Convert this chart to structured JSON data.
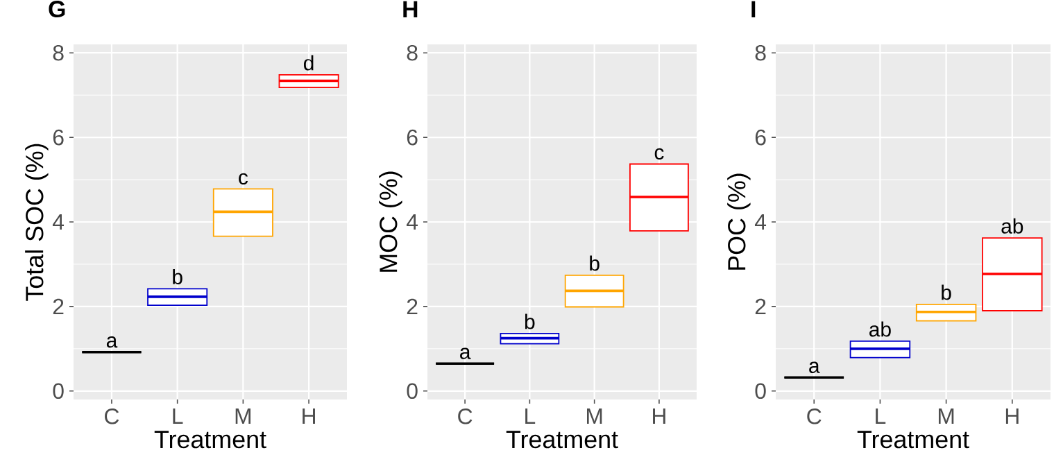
{
  "chart_data": [
    {
      "type": "box",
      "title": "G",
      "xlabel": "Treatment",
      "ylabel": "Total SOC (%)",
      "categories": [
        "C",
        "L",
        "M",
        "H"
      ],
      "boxes": [
        {
          "low": 0.92,
          "q1": 0.92,
          "median": 0.92,
          "q3": 0.92,
          "high": 0.92
        },
        {
          "low": 2.03,
          "q1": 2.03,
          "median": 2.23,
          "q3": 2.42,
          "high": 2.42
        },
        {
          "low": 3.66,
          "q1": 3.66,
          "median": 4.24,
          "q3": 4.78,
          "high": 4.78
        },
        {
          "low": 7.18,
          "q1": 7.18,
          "median": 7.34,
          "q3": 7.48,
          "high": 7.48
        }
      ],
      "colors": [
        "#000000",
        "#0000cc",
        "#ffa500",
        "#ff0000"
      ],
      "ylim": [
        -0.2,
        8.2
      ],
      "yticks": [
        0,
        2,
        4,
        6,
        8
      ],
      "grid": true,
      "annotations": [
        "a",
        "b",
        "c",
        "d"
      ]
    },
    {
      "type": "box",
      "title": "H",
      "xlabel": "Treatment",
      "ylabel": "MOC (%)",
      "categories": [
        "C",
        "L",
        "M",
        "H"
      ],
      "boxes": [
        {
          "low": 0.65,
          "q1": 0.65,
          "median": 0.65,
          "q3": 0.65,
          "high": 0.65
        },
        {
          "low": 1.12,
          "q1": 1.12,
          "median": 1.25,
          "q3": 1.36,
          "high": 1.36
        },
        {
          "low": 1.99,
          "q1": 1.99,
          "median": 2.37,
          "q3": 2.74,
          "high": 2.74
        },
        {
          "low": 3.79,
          "q1": 3.79,
          "median": 4.59,
          "q3": 5.37,
          "high": 5.37
        }
      ],
      "colors": [
        "#000000",
        "#0000cc",
        "#ffa500",
        "#ff0000"
      ],
      "ylim": [
        -0.2,
        8.2
      ],
      "yticks": [
        0,
        2,
        4,
        6,
        8
      ],
      "grid": true,
      "annotations": [
        "a",
        "b",
        "b",
        "c"
      ]
    },
    {
      "type": "box",
      "title": "I",
      "xlabel": "Treatment",
      "ylabel": "POC (%)",
      "categories": [
        "C",
        "L",
        "M",
        "H"
      ],
      "boxes": [
        {
          "low": 0.32,
          "q1": 0.32,
          "median": 0.32,
          "q3": 0.32,
          "high": 0.32
        },
        {
          "low": 0.79,
          "q1": 0.79,
          "median": 1.0,
          "q3": 1.18,
          "high": 1.18
        },
        {
          "low": 1.66,
          "q1": 1.66,
          "median": 1.87,
          "q3": 2.05,
          "high": 2.05
        },
        {
          "low": 1.9,
          "q1": 1.9,
          "median": 2.77,
          "q3": 3.62,
          "high": 3.62
        }
      ],
      "colors": [
        "#000000",
        "#0000cc",
        "#ffa500",
        "#ff0000"
      ],
      "ylim": [
        -0.2,
        8.2
      ],
      "yticks": [
        0,
        2,
        4,
        6,
        8
      ],
      "grid": true,
      "annotations": [
        "a",
        "ab",
        "b",
        "ab"
      ]
    }
  ]
}
